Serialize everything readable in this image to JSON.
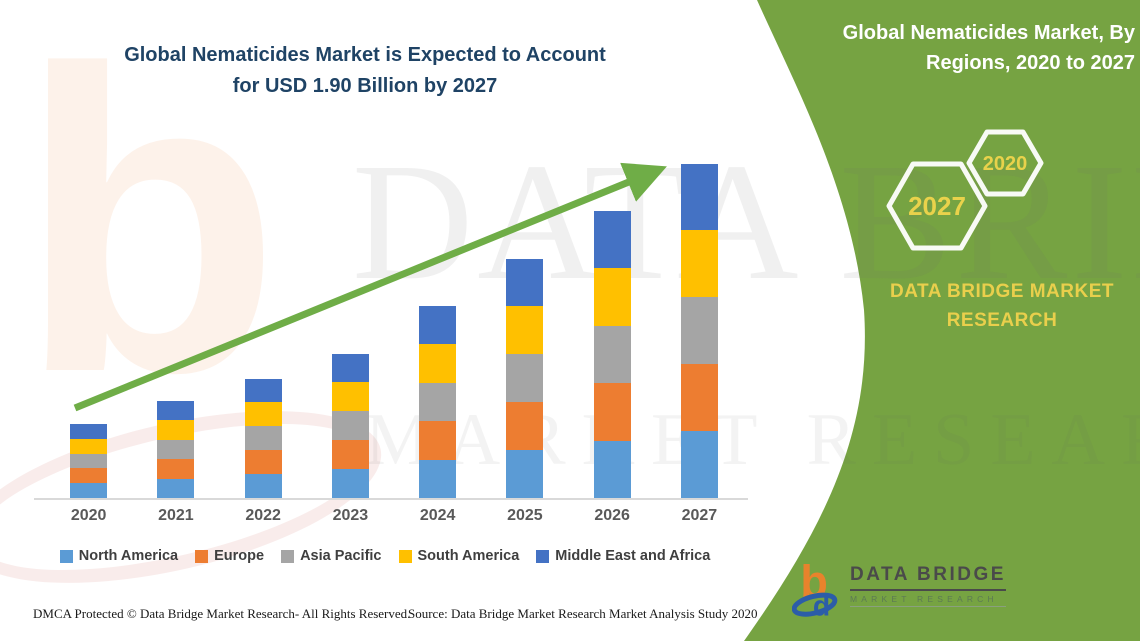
{
  "page": {
    "chart_title_line1": "Global Nematicides Market is Expected to Account",
    "chart_title_line2": "for USD 1.90 Billion by 2027"
  },
  "chart_data": {
    "type": "bar",
    "stacked": true,
    "title": "Global Nematicides Market is Expected to Account for USD 1.90 Billion by 2027",
    "unit": "USD Billion",
    "categories": [
      "2020",
      "2021",
      "2022",
      "2023",
      "2024",
      "2025",
      "2026",
      "2027"
    ],
    "series": [
      {
        "name": "North America",
        "color": "#5B9BD5",
        "values": [
          0.084,
          0.11,
          0.136,
          0.164,
          0.218,
          0.272,
          0.326,
          0.38
        ]
      },
      {
        "name": "Europe",
        "color": "#ED7D31",
        "values": [
          0.084,
          0.11,
          0.136,
          0.164,
          0.218,
          0.272,
          0.326,
          0.38
        ]
      },
      {
        "name": "Asia Pacific",
        "color": "#A5A5A5",
        "values": [
          0.084,
          0.11,
          0.136,
          0.164,
          0.218,
          0.272,
          0.326,
          0.38
        ]
      },
      {
        "name": "South America",
        "color": "#FFC000",
        "values": [
          0.084,
          0.11,
          0.136,
          0.164,
          0.218,
          0.272,
          0.326,
          0.38
        ]
      },
      {
        "name": "Middle East and Africa",
        "color": "#4472C4",
        "values": [
          0.084,
          0.11,
          0.136,
          0.164,
          0.218,
          0.272,
          0.326,
          0.38
        ]
      }
    ],
    "totals_estimated": [
      0.42,
      0.55,
      0.68,
      0.82,
      1.09,
      1.36,
      1.63,
      1.9
    ],
    "ylim": [
      0,
      2.0
    ],
    "y_axis_visible": false,
    "grid": false,
    "legend_position": "bottom",
    "annotations": [
      "upward trend arrow from 2020 to 2027"
    ]
  },
  "side_panel": {
    "heading_line1": "Global Nematicides Market, By",
    "heading_line2": "Regions, 2020 to 2027",
    "hexagon_large_label": "2027",
    "hexagon_small_label": "2020",
    "brand_line1": "DATA BRIDGE MARKET",
    "brand_line2": "RESEARCH"
  },
  "logo": {
    "title": "DATA BRIDGE",
    "subtitle": "MARKET RESEARCH"
  },
  "footer": {
    "dmca": "DMCA Protected © Data Bridge Market Research- All Rights Reserved.",
    "source": "Source: Data Bridge Market Research Market Analysis Study 2020"
  },
  "watermark": {
    "glyph": "b",
    "big": "DATA BRIDGE",
    "mid": "MARKET RESEARCH"
  },
  "colors": {
    "panel_green": "#76A342",
    "arrow_green": "#6FAD47",
    "title_navy": "#1F4365",
    "hex_yellow": "#E9D24B",
    "brand_yellow": "#E9CF4C",
    "label_gray": "#595959",
    "legend_text": "#3F3F3F",
    "axis_gray": "#D9D9D9",
    "logo_orange": "#E8832C",
    "logo_blue": "#2C5DA8"
  }
}
